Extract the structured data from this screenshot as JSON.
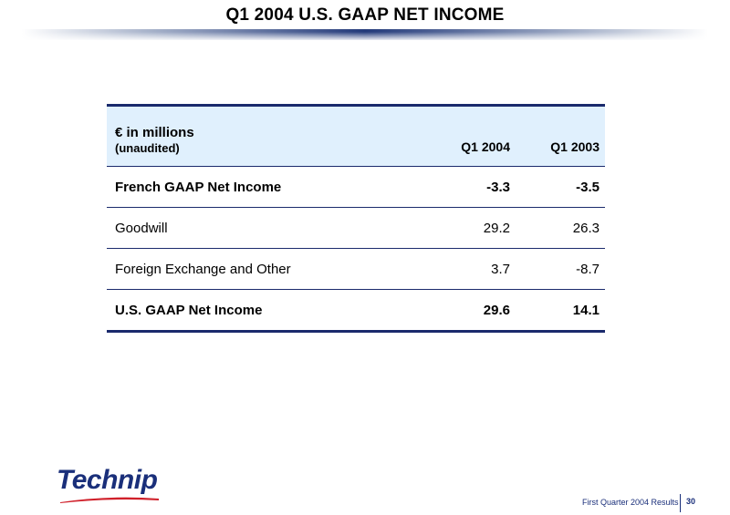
{
  "header": {
    "title": "Q1 2004 U.S. GAAP NET INCOME"
  },
  "table": {
    "unit_label": "€ in millions",
    "sub_label": "(unaudited)",
    "columns": [
      "Q1 2004",
      "Q1 2003"
    ],
    "rows": [
      {
        "label": "French GAAP Net Income",
        "q1_2004": "-3.3",
        "q1_2003": "-3.5",
        "bold": true
      },
      {
        "label": "Goodwill",
        "q1_2004": "29.2",
        "q1_2003": "26.3",
        "bold": false
      },
      {
        "label": "Foreign Exchange and Other",
        "q1_2004": "3.7",
        "q1_2003": "-8.7",
        "bold": false
      },
      {
        "label": "U.S. GAAP Net Income",
        "q1_2004": "29.6",
        "q1_2003": "14.1",
        "bold": true
      }
    ]
  },
  "footer": {
    "logo_text": "Technip",
    "caption": "First Quarter 2004 Results",
    "page_number": "30"
  },
  "colors": {
    "accent": "#1a2a6c",
    "header_fill": "#e0f0fd",
    "logo_red": "#d0202a"
  }
}
